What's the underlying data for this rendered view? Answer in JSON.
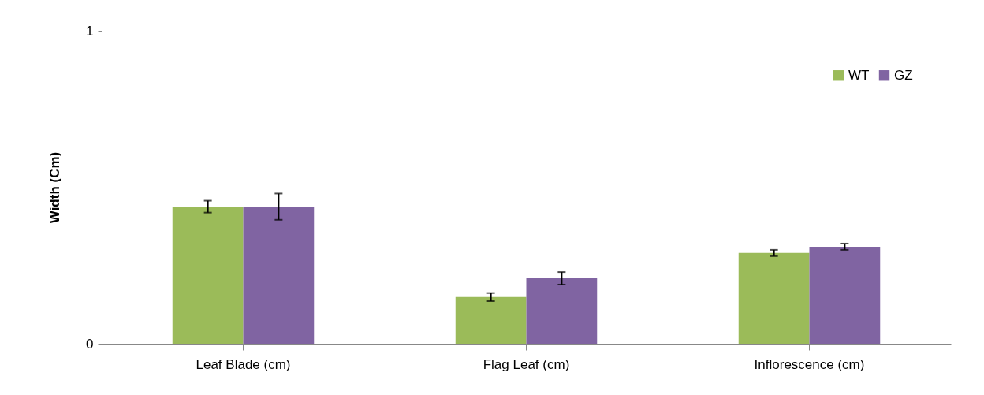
{
  "chart_data": {
    "type": "bar",
    "ylabel": "Width (Cm)",
    "categories": [
      "Leaf Blade (cm)",
      "Flag Leaf (cm)",
      "Inflorescence (cm)"
    ],
    "series": [
      {
        "name": "WT",
        "color": "#9bbb59",
        "values": [
          0.438,
          0.149,
          0.29
        ],
        "errors": [
          0.019,
          0.013,
          0.01
        ]
      },
      {
        "name": "GZ",
        "color": "#8064a2",
        "values": [
          0.438,
          0.209,
          0.31
        ],
        "errors": [
          0.042,
          0.02,
          0.01
        ]
      }
    ],
    "ylim": [
      0,
      1
    ],
    "yticks": [
      0,
      1
    ],
    "grid": false,
    "legend": "top right"
  }
}
